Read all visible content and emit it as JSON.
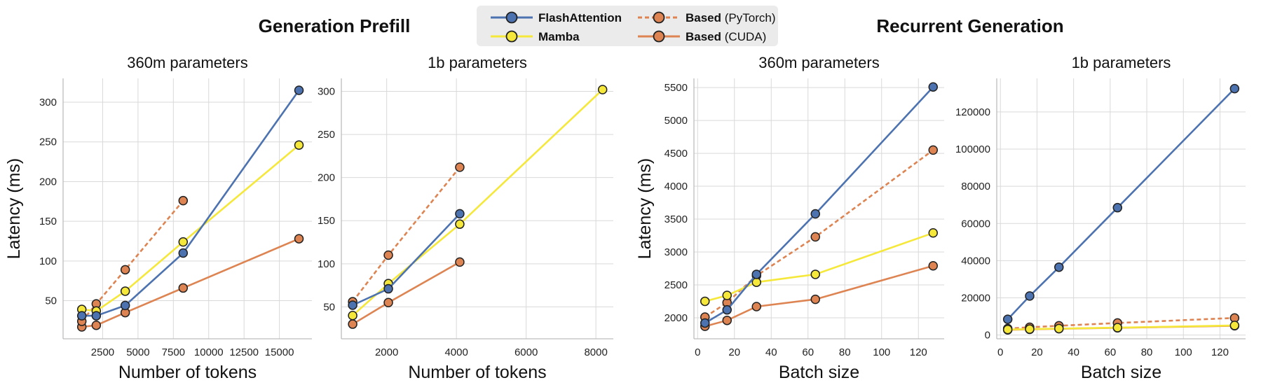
{
  "group_titles": {
    "left": "Generation Prefill",
    "right": "Recurrent Generation"
  },
  "legend": [
    {
      "key": "flash",
      "name": "FlashAttention",
      "suffix": "",
      "color": "#4C72B0",
      "dashed": false
    },
    {
      "key": "based_pt",
      "name": "Based",
      "suffix": " (PyTorch)",
      "color": "#DD8452",
      "dashed": true
    },
    {
      "key": "mamba",
      "name": "Mamba",
      "suffix": "",
      "color": "#F5E83A",
      "dashed": false
    },
    {
      "key": "based_cuda",
      "name": "Based",
      "suffix": " (CUDA)",
      "color": "#DD8452",
      "dashed": false
    }
  ],
  "chart_data": [
    {
      "type": "line",
      "title": "360m parameters",
      "xlabel": "Number of tokens",
      "ylabel": "Latency (ms)",
      "xlim": [
        -300,
        17300
      ],
      "ylim": [
        2,
        330
      ],
      "xticks": [
        2500,
        5000,
        7500,
        10000,
        12500,
        15000
      ],
      "yticks": [
        50,
        100,
        150,
        200,
        250,
        300
      ],
      "series": [
        {
          "key": "flash",
          "name": "FlashAttention",
          "x": [
            1024,
            2048,
            4096,
            8192,
            16384
          ],
          "y": [
            31,
            31,
            44,
            110,
            315
          ]
        },
        {
          "key": "mamba",
          "name": "Mamba",
          "x": [
            1024,
            2048,
            4096,
            8192,
            16384
          ],
          "y": [
            39,
            37,
            62,
            124,
            246
          ]
        },
        {
          "key": "based_pt",
          "name": "Based (PyTorch)",
          "x": [
            1024,
            2048,
            4096,
            8192
          ],
          "y": [
            24,
            46,
            89,
            176
          ]
        },
        {
          "key": "based_cuda",
          "name": "Based (CUDA)",
          "x": [
            1024,
            2048,
            4096,
            8192,
            16384
          ],
          "y": [
            17,
            19,
            35,
            66,
            128
          ]
        }
      ]
    },
    {
      "type": "line",
      "title": "1b parameters",
      "xlabel": "Number of tokens",
      "ylabel": "",
      "xlim": [
        700,
        8500
      ],
      "ylim": [
        13,
        315
      ],
      "xticks": [
        2000,
        4000,
        6000,
        8000
      ],
      "yticks": [
        50,
        100,
        150,
        200,
        250,
        300
      ],
      "series": [
        {
          "key": "flash",
          "name": "FlashAttention",
          "x": [
            1024,
            2048,
            4096
          ],
          "y": [
            52,
            71,
            158
          ]
        },
        {
          "key": "mamba",
          "name": "Mamba",
          "x": [
            1024,
            2048,
            4096,
            8192
          ],
          "y": [
            40,
            77,
            146,
            302
          ]
        },
        {
          "key": "based_pt",
          "name": "Based (PyTorch)",
          "x": [
            1024,
            2048,
            4096
          ],
          "y": [
            56,
            110,
            212
          ]
        },
        {
          "key": "based_cuda",
          "name": "Based (CUDA)",
          "x": [
            1024,
            2048,
            4096
          ],
          "y": [
            30,
            55,
            102
          ]
        }
      ]
    },
    {
      "type": "line",
      "title": "360m parameters",
      "xlabel": "Batch size",
      "ylabel": "Latency (ms)",
      "xlim": [
        -2,
        134
      ],
      "ylim": [
        1680,
        5640
      ],
      "xticks": [
        0,
        20,
        40,
        60,
        80,
        100,
        120
      ],
      "yticks": [
        2000,
        2500,
        3000,
        3500,
        4000,
        4500,
        5000,
        5500
      ],
      "series": [
        {
          "key": "flash",
          "name": "FlashAttention",
          "x": [
            4,
            16,
            32,
            64,
            128
          ],
          "y": [
            1920,
            2120,
            2660,
            3580,
            5510
          ]
        },
        {
          "key": "mamba",
          "name": "Mamba",
          "x": [
            4,
            16,
            32,
            64,
            128
          ],
          "y": [
            2250,
            2340,
            2540,
            2660,
            3290
          ]
        },
        {
          "key": "based_pt",
          "name": "Based (PyTorch)",
          "x": [
            4,
            16,
            32,
            64,
            128
          ],
          "y": [
            2010,
            2230,
            2640,
            3230,
            4550
          ]
        },
        {
          "key": "based_cuda",
          "name": "Based (CUDA)",
          "x": [
            4,
            16,
            32,
            64,
            128
          ],
          "y": [
            1870,
            1960,
            2170,
            2280,
            2790
          ]
        }
      ]
    },
    {
      "type": "line",
      "title": "1b parameters",
      "xlabel": "Batch size",
      "ylabel": "",
      "xlim": [
        -2,
        134
      ],
      "ylim": [
        -2000,
        138000
      ],
      "xticks": [
        0,
        20,
        40,
        60,
        80,
        100,
        120
      ],
      "yticks": [
        0,
        20000,
        40000,
        60000,
        80000,
        100000,
        120000
      ],
      "series": [
        {
          "key": "flash",
          "name": "FlashAttention",
          "x": [
            4,
            16,
            32,
            64,
            128
          ],
          "y": [
            8500,
            21000,
            36500,
            68500,
            132500
          ]
        },
        {
          "key": "mamba",
          "name": "Mamba",
          "x": [
            4,
            16,
            32,
            64,
            128
          ],
          "y": [
            3000,
            3200,
            3500,
            4000,
            5200
          ]
        },
        {
          "key": "based_pt",
          "name": "Based (PyTorch)",
          "x": [
            4,
            16,
            32,
            64,
            128
          ],
          "y": [
            3500,
            4200,
            5000,
            6500,
            9200
          ]
        },
        {
          "key": "based_cuda",
          "name": "Based (CUDA)",
          "x": [
            4,
            16,
            32,
            64,
            128
          ],
          "y": [
            2800,
            3100,
            3400,
            3900,
            5000
          ]
        }
      ]
    }
  ]
}
